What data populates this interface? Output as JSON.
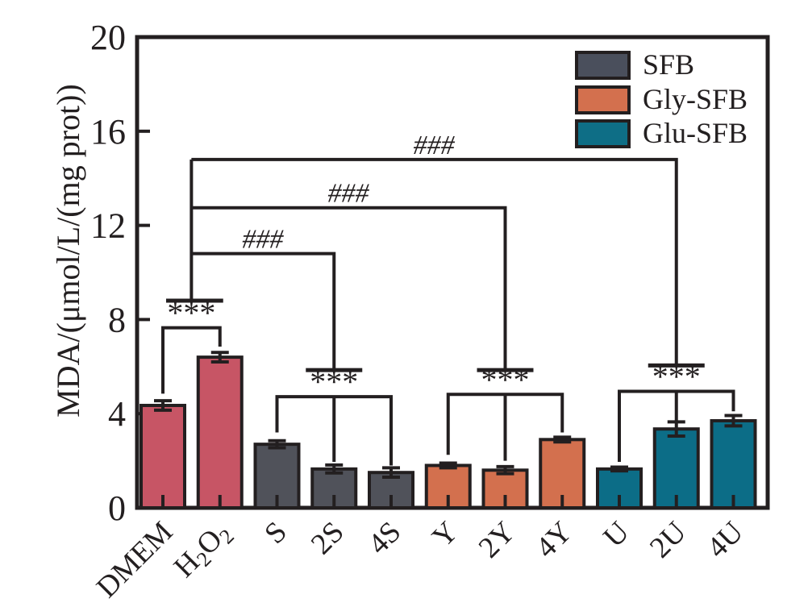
{
  "figure": {
    "background": "#ffffff",
    "ink": "#231f20"
  },
  "chart_data": {
    "type": "bar",
    "title": "",
    "ylabel": "MDA/(μmol/L/(mg prot))",
    "xlabel": "",
    "ylim": [
      0,
      20
    ],
    "yticks": [
      0,
      4,
      8,
      12,
      16,
      20
    ],
    "grid": false,
    "categories": [
      "DMEM",
      "H2O2",
      "S",
      "2S",
      "4S",
      "Y",
      "2Y",
      "4Y",
      "U",
      "2U",
      "4U"
    ],
    "category_tex": [
      "DMEM",
      "H_2O_2",
      "S",
      "2S",
      "4S",
      "Y",
      "2Y",
      "4Y",
      "U",
      "2U",
      "4U"
    ],
    "values": [
      4.35,
      6.4,
      2.7,
      1.65,
      1.5,
      1.8,
      1.6,
      2.9,
      1.65,
      3.35,
      3.7
    ],
    "errors": [
      0.2,
      0.2,
      0.15,
      0.17,
      0.2,
      0.1,
      0.15,
      0.1,
      0.08,
      0.3,
      0.22
    ],
    "bar_colors": [
      "#c75565",
      "#c75565",
      "#50525a",
      "#50525a",
      "#50525a",
      "#d3704e",
      "#d3704e",
      "#d3704e",
      "#0c6d87",
      "#0c6d87",
      "#0c6d87"
    ],
    "legend": {
      "position": "upper-right",
      "entries": [
        {
          "label": "SFB",
          "color": "#4a4f5c"
        },
        {
          "label": "Gly-SFB",
          "color": "#d3704e"
        },
        {
          "label": "Glu-SFB",
          "color": "#0e6e86"
        }
      ]
    },
    "annotations": {
      "pair_comparison": {
        "label": "***",
        "bars": [
          0,
          1
        ],
        "bracket_y": 7.65,
        "leg_end_y": [
          4.85,
          6.85
        ]
      },
      "control_anchor": {
        "tbar_y": 8.8,
        "over_bars": [
          0,
          1
        ]
      },
      "group_comparisons": [
        {
          "sig_label": "***",
          "bars": [
            2,
            3,
            4
          ],
          "bracket_y": 4.72,
          "leg_end_y": [
            3.2,
            1.95,
            1.8
          ],
          "hash_label": "###",
          "hash_line_y": 10.8,
          "tbar_y": 5.85
        },
        {
          "sig_label": "***",
          "bars": [
            5,
            6,
            7
          ],
          "bracket_y": 4.82,
          "leg_end_y": [
            2.25,
            2.0,
            3.2
          ],
          "hash_label": "###",
          "hash_line_y": 12.75,
          "tbar_y": 5.85
        },
        {
          "sig_label": "***",
          "bars": [
            8,
            9,
            10
          ],
          "bracket_y": 4.95,
          "leg_end_y": [
            1.95,
            3.65,
            4.1
          ],
          "hash_label": "###",
          "hash_line_y": 14.8,
          "tbar_y": 6.05
        }
      ]
    }
  }
}
